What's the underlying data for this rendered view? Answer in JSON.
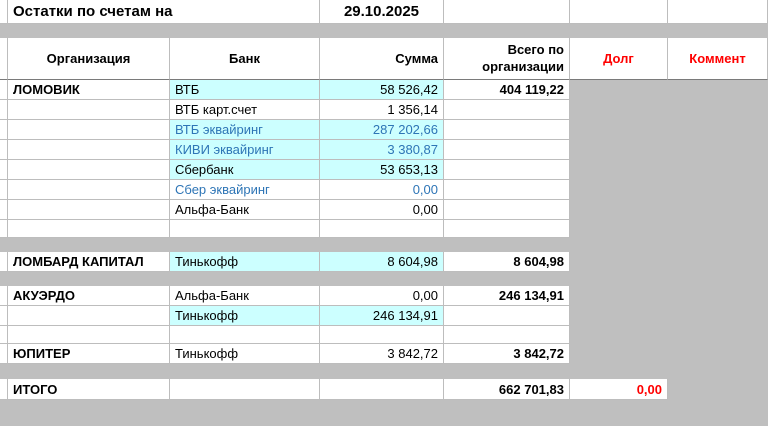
{
  "title": {
    "label": "Остатки по счетам на",
    "date": "29.10.2025"
  },
  "columns": {
    "org": "Организация",
    "bank": "Банк",
    "sum": "Сумма",
    "total": "Всего по организации",
    "debt": "Долг",
    "comment": "Коммент"
  },
  "rows": [
    {
      "org": "ЛОМОВИК",
      "bank": "ВТБ",
      "sum": "58 526,42",
      "total": "404 119,22"
    },
    {
      "org": "",
      "bank": "ВТБ карт.счет",
      "sum": "1 356,14",
      "total": ""
    },
    {
      "org": "",
      "bank": "ВТБ эквайринг",
      "sum": "287 202,66",
      "total": ""
    },
    {
      "org": "",
      "bank": "КИВИ эквайринг",
      "sum": "3 380,87",
      "total": ""
    },
    {
      "org": "",
      "bank": "Сбербанк",
      "sum": "53 653,13",
      "total": ""
    },
    {
      "org": "",
      "bank": "Сбер эквайринг",
      "sum": "0,00",
      "total": ""
    },
    {
      "org": "",
      "bank": "Альфа-Банк",
      "sum": "0,00",
      "total": ""
    },
    {
      "org": "ЛОМБАРД КАПИТАЛ",
      "bank": "Тинькофф",
      "sum": "8 604,98",
      "total": "8 604,98"
    },
    {
      "org": "АКУЭРДО",
      "bank": "Альфа-Банк",
      "sum": "0,00",
      "total": "246 134,91"
    },
    {
      "org": "",
      "bank": "Тинькофф",
      "sum": "246 134,91",
      "total": ""
    },
    {
      "org": "ЮПИТЕР",
      "bank": "Тинькофф",
      "sum": "3 842,72",
      "total": "3 842,72"
    },
    {
      "org": "ИТОГО",
      "bank": "",
      "sum": "",
      "total": "662 701,83",
      "debt": "0,00"
    }
  ],
  "colors": {
    "highlight_cyan": "#ccffff",
    "accent_blue": "#2e75b6",
    "accent_red": "#ff0000",
    "band_gray": "#bfbfbf"
  }
}
